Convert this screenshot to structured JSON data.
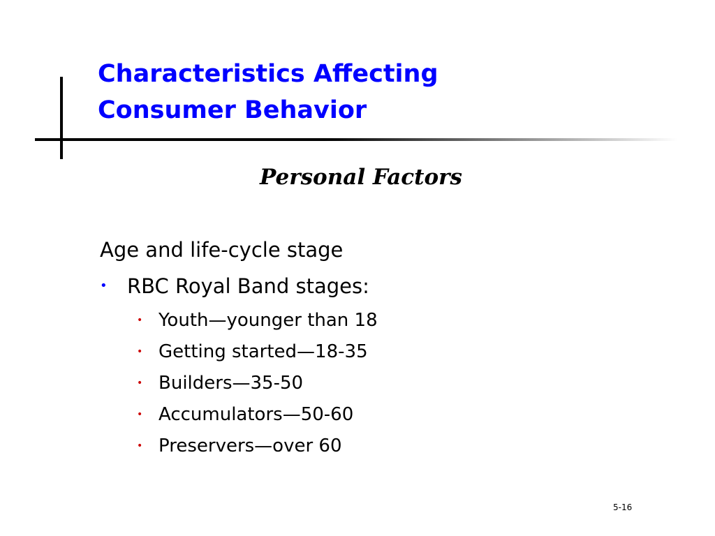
{
  "slide": {
    "title_line1": "Characteristics Affecting",
    "title_line2": "Consumer Behavior",
    "subtitle": "Personal Factors",
    "heading": "Age and life-cycle stage",
    "bullet": "RBC Royal Band stages:",
    "stages": [
      "Youth—younger than 18",
      "Getting started—18-35",
      "Builders—35-50",
      "Accumulators—50-60",
      "Preservers—over 60"
    ],
    "page_number": "5-16"
  },
  "colors": {
    "title": "#0000ff",
    "level1_bullet": "#0000ff",
    "level2_bullet": "#cc0000"
  }
}
